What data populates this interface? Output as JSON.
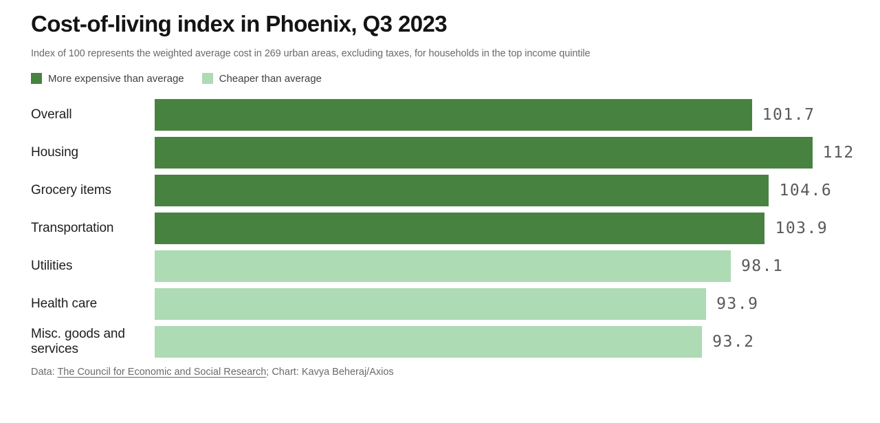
{
  "title": "Cost-of-living index in Phoenix, Q3 2023",
  "subtitle": "Index of 100 represents the weighted average cost in 269 urban areas, excluding taxes, for households in the top income quintile",
  "legend": [
    {
      "label": "More expensive than average",
      "color_key": "expensive"
    },
    {
      "label": "Cheaper than average",
      "color_key": "cheaper"
    }
  ],
  "colors": {
    "expensive": "#488240",
    "cheaper": "#addbb4",
    "value_text": "#58595b",
    "title_text": "#141414",
    "muted_text": "#6a6a6a"
  },
  "chart_data": {
    "type": "bar",
    "orientation": "horizontal",
    "title": "Cost-of-living index in Phoenix, Q3 2023",
    "xlabel": "",
    "ylabel": "",
    "xlim": [
      0,
      120.7
    ],
    "grid": false,
    "legend_position": "top",
    "categories": [
      "Overall",
      "Housing",
      "Grocery items",
      "Transportation",
      "Utilities",
      "Health care",
      "Misc. goods and services"
    ],
    "values": [
      101.7,
      112,
      104.6,
      103.9,
      98.1,
      93.9,
      93.2
    ],
    "value_labels": [
      "101.7",
      "112",
      "104.6",
      "103.9",
      "98.1",
      "93.9",
      "93.2"
    ],
    "bar_color_keys": [
      "expensive",
      "expensive",
      "expensive",
      "expensive",
      "cheaper",
      "cheaper",
      "cheaper"
    ]
  },
  "footer": {
    "prefix": "Data: ",
    "link_text": "The Council for Economic and Social Research",
    "suffix": "; Chart: Kavya Beheraj/Axios"
  }
}
